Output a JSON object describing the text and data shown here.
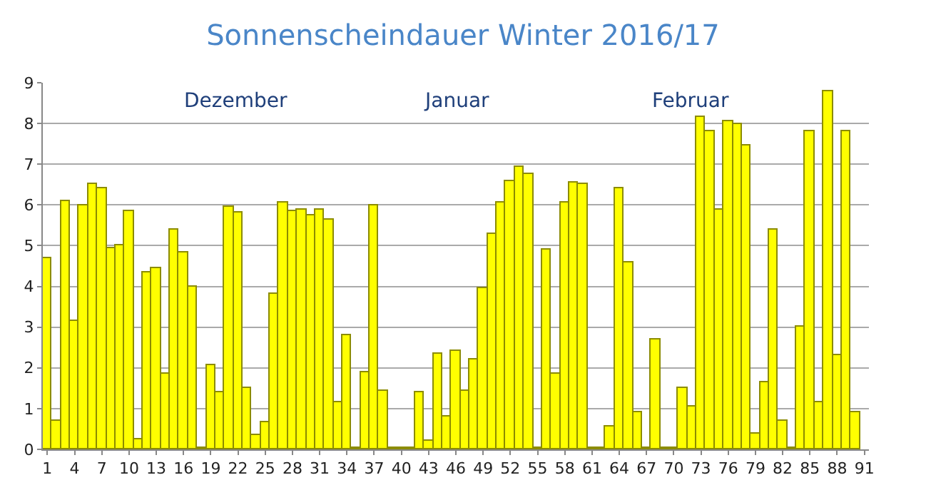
{
  "chart_data": {
    "type": "bar",
    "title": "Sonnenscheindauer Winter 2016/17",
    "categories": [
      "1",
      null,
      null,
      "4",
      null,
      null,
      "7",
      null,
      null,
      "10",
      null,
      null,
      "13",
      null,
      null,
      "16",
      null,
      null,
      "19",
      null,
      null,
      "22",
      null,
      null,
      "25",
      null,
      null,
      "28",
      null,
      null,
      "31",
      null,
      null,
      "34",
      null,
      null,
      "37",
      null,
      null,
      "40",
      null,
      null,
      "43",
      null,
      null,
      "46",
      null,
      null,
      "49",
      null,
      null,
      "52",
      null,
      null,
      "55",
      null,
      null,
      "58",
      null,
      null,
      "61",
      null,
      null,
      "64",
      null,
      null,
      "67",
      null,
      null,
      "70",
      null,
      null,
      "73",
      null,
      null,
      "76",
      null,
      null,
      "79",
      null,
      null,
      "82",
      null,
      null,
      "85",
      null,
      null,
      "88",
      null,
      null,
      "91"
    ],
    "values": [
      4.7,
      0.7,
      6.1,
      3.15,
      6.0,
      6.5,
      6.4,
      4.95,
      5.0,
      5.85,
      0.25,
      4.35,
      4.45,
      1.85,
      5.4,
      4.85,
      4.0,
      0.05,
      2.05,
      1.4,
      5.95,
      5.8,
      1.5,
      0.35,
      0.65,
      3.8,
      6.05,
      5.85,
      5.9,
      5.75,
      5.9,
      5.65,
      1.15,
      2.8,
      0.05,
      1.9,
      6.0,
      1.45,
      0.05,
      0.05,
      0.05,
      1.4,
      0.2,
      2.35,
      0.8,
      2.4,
      1.45,
      2.2,
      3.95,
      5.3,
      6.05,
      6.6,
      6.95,
      6.75,
      0.05,
      4.9,
      1.85,
      6.05,
      6.55,
      6.5,
      0.05,
      0.05,
      0.55,
      6.4,
      4.6,
      0.9,
      0.05,
      2.7,
      0.05,
      0.05,
      1.5,
      1.05,
      8.15,
      7.8,
      5.9,
      8.05,
      8.0,
      7.45,
      0.4,
      1.65,
      5.4,
      0.7,
      0.05,
      3.0,
      7.8,
      1.15,
      8.8,
      2.3,
      7.8,
      0.9,
      null
    ],
    "color": "#ffff00",
    "ylim": [
      0,
      9
    ],
    "yticks": [
      0,
      1,
      2,
      3,
      4,
      5,
      6,
      7,
      8,
      9
    ],
    "grid": "y",
    "annotations": [
      "Dezember",
      "Januar",
      "Februar"
    ]
  }
}
